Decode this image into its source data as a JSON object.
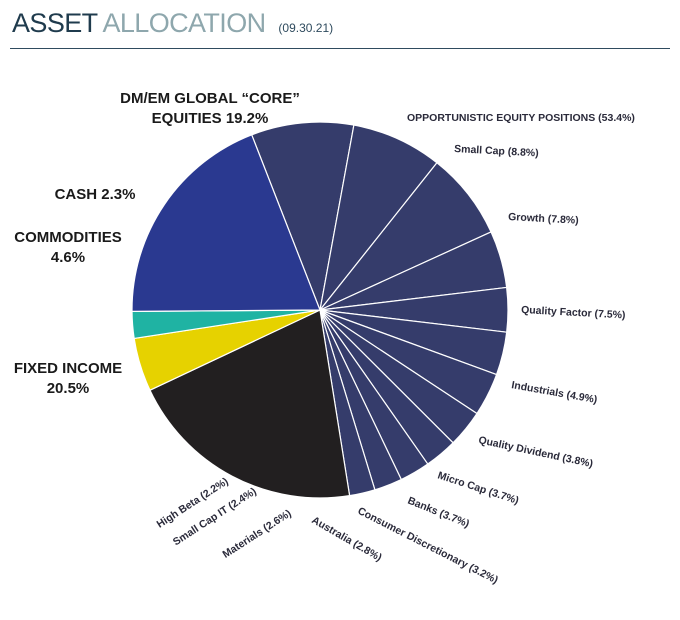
{
  "header": {
    "title_word1": "ASSET",
    "title_word2": "ALLOCATION",
    "date": "(09.30.21)"
  },
  "chart_data": {
    "type": "pie",
    "title": "ASSET ALLOCATION",
    "subtitle": "(09.30.21)",
    "group_label": "OPPORTUNISTIC EQUITY POSITIONS (53.4%)",
    "slices": [
      {
        "label": "Small Cap (8.8%)",
        "value": 8.8,
        "color": "#353c6b"
      },
      {
        "label": "Growth (7.8%)",
        "value": 7.8,
        "color": "#353c6b"
      },
      {
        "label": "Quality Factor (7.5%)",
        "value": 7.5,
        "color": "#353c6b"
      },
      {
        "label": "Industrials (4.9%)",
        "value": 4.9,
        "color": "#353c6b"
      },
      {
        "label": "Quality Dividend (3.8%)",
        "value": 3.8,
        "color": "#353c6b"
      },
      {
        "label": "Micro Cap (3.7%)",
        "value": 3.7,
        "color": "#353c6b"
      },
      {
        "label": "Banks (3.7%)",
        "value": 3.7,
        "color": "#353c6b"
      },
      {
        "label": "Consumer Discretionary (3.2%)",
        "value": 3.2,
        "color": "#353c6b"
      },
      {
        "label": "Australia (2.8%)",
        "value": 2.8,
        "color": "#353c6b"
      },
      {
        "label": "Materials (2.6%)",
        "value": 2.6,
        "color": "#353c6b"
      },
      {
        "label": "Small Cap IT (2.4%)",
        "value": 2.4,
        "color": "#353c6b"
      },
      {
        "label": "High Beta (2.2%)",
        "value": 2.2,
        "color": "#353c6b"
      },
      {
        "label": [
          "FIXED INCOME",
          "20.5%"
        ],
        "value": 20.5,
        "color": "#221f20"
      },
      {
        "label": [
          "COMMODITIES",
          "4.6%"
        ],
        "value": 4.6,
        "color": "#e6d200"
      },
      {
        "label": [
          "CASH 2.3%"
        ],
        "value": 2.3,
        "color": "#1fb3a3"
      },
      {
        "label": [
          "DM/EM GLOBAL “CORE”",
          "EQUITIES 19.2%"
        ],
        "value": 19.2,
        "color": "#2a3990"
      }
    ]
  }
}
